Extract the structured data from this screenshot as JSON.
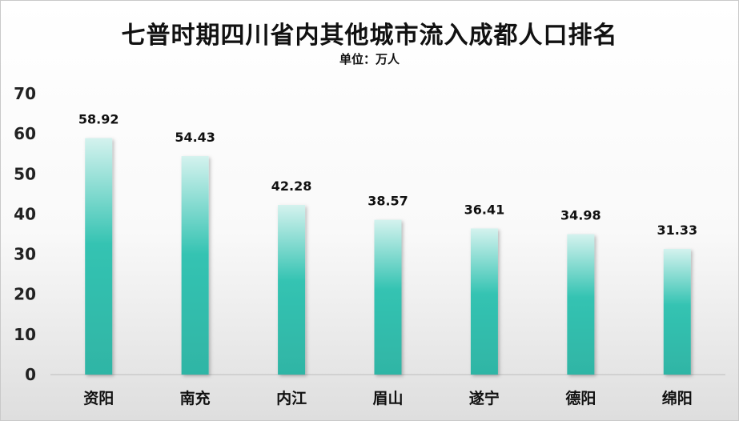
{
  "title": "七普时期四川省内其他城市流入成都人口排名",
  "subtitle": "单位：万人",
  "chart_data": {
    "type": "bar",
    "title": "七普时期四川省内其他城市流入成都人口排名",
    "subtitle": "单位：万人",
    "categories": [
      "资阳",
      "南充",
      "内江",
      "眉山",
      "遂宁",
      "德阳",
      "绵阳"
    ],
    "values": [
      58.92,
      54.43,
      42.28,
      38.57,
      36.41,
      34.98,
      31.33
    ],
    "value_labels": [
      "58.92",
      "54.43",
      "42.28",
      "38.57",
      "36.41",
      "34.98",
      "31.33"
    ],
    "yticks": [
      "0",
      "10",
      "20",
      "30",
      "40",
      "50",
      "60",
      "70"
    ],
    "ylim": [
      0,
      70
    ],
    "xlabel": "",
    "ylabel": "",
    "grid": false,
    "bar_colors": {
      "top": "#d4f2ee",
      "bottom": "#2fb5a5"
    }
  }
}
